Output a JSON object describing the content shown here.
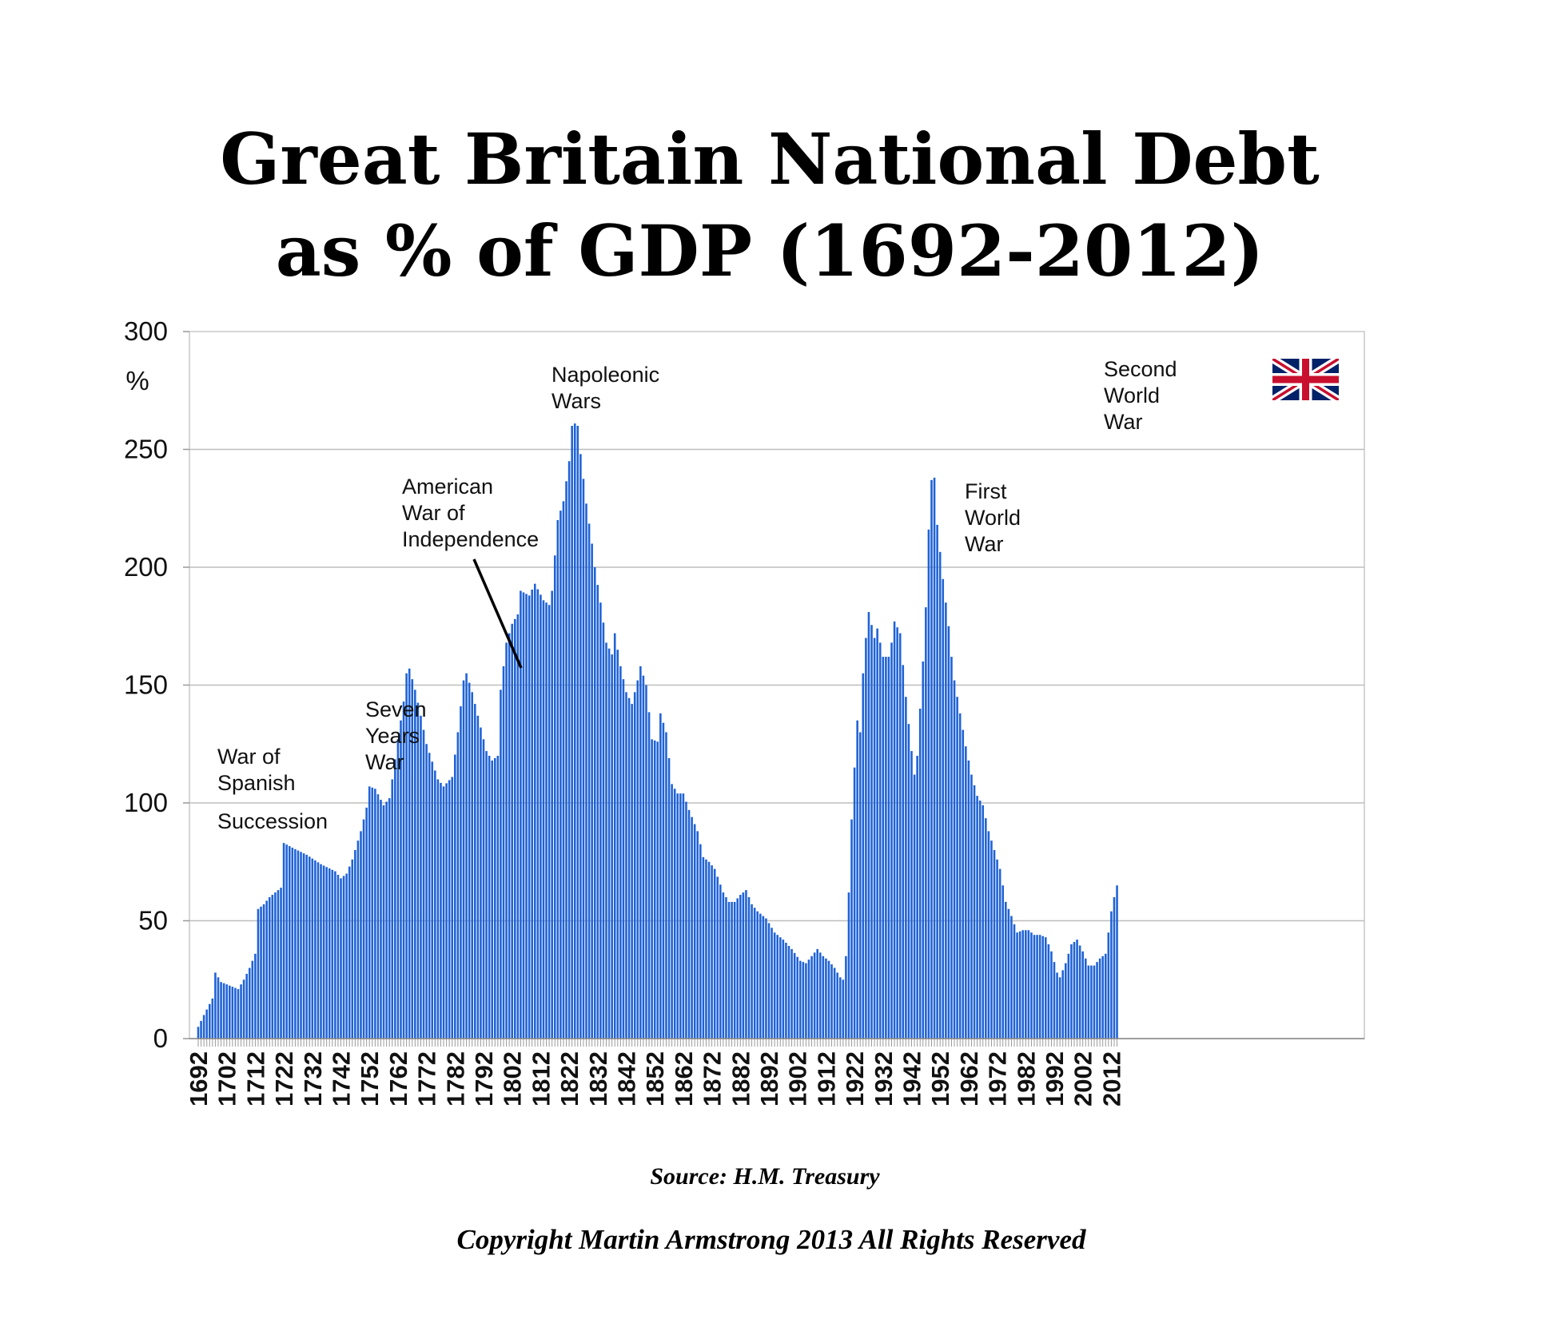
{
  "chart_data": {
    "type": "bar",
    "title": [
      "Great Britain National Debt",
      "as % of GDP (1692-2012)"
    ],
    "ylabel": "%",
    "xlabel": "",
    "ylim": [
      0,
      300
    ],
    "yticks": [
      0,
      50,
      100,
      150,
      200,
      250,
      300
    ],
    "xtick_labels": [
      "1692",
      "1702",
      "1712",
      "1722",
      "1732",
      "1742",
      "1752",
      "1762",
      "1772",
      "1782",
      "1792",
      "1802",
      "1812",
      "1822",
      "1832",
      "1842",
      "1852",
      "1862",
      "1872",
      "1882",
      "1892",
      "1902",
      "1912",
      "1922",
      "1932",
      "1942",
      "1952",
      "1962",
      "1972",
      "1982",
      "1992",
      "2002",
      "2012"
    ],
    "x_start": 1692,
    "x_end": 2012,
    "grid": true,
    "bar_color": "#1f62d6",
    "breakpoints": [
      [
        1692,
        5
      ],
      [
        1694,
        10
      ],
      [
        1697,
        17
      ],
      [
        1698,
        28
      ],
      [
        1700,
        24
      ],
      [
        1702,
        23
      ],
      [
        1704,
        22
      ],
      [
        1706,
        21
      ],
      [
        1708,
        25
      ],
      [
        1710,
        30
      ],
      [
        1712,
        36
      ],
      [
        1713,
        55
      ],
      [
        1715,
        57
      ],
      [
        1717,
        60
      ],
      [
        1719,
        62
      ],
      [
        1721,
        64
      ],
      [
        1722,
        83
      ],
      [
        1725,
        81
      ],
      [
        1730,
        78
      ],
      [
        1735,
        74
      ],
      [
        1740,
        71
      ],
      [
        1742,
        68
      ],
      [
        1744,
        70
      ],
      [
        1746,
        76
      ],
      [
        1749,
        88
      ],
      [
        1751,
        98
      ],
      [
        1752,
        107
      ],
      [
        1754,
        106
      ],
      [
        1757,
        99
      ],
      [
        1759,
        102
      ],
      [
        1760,
        110
      ],
      [
        1762,
        127
      ],
      [
        1764,
        143
      ],
      [
        1765,
        155
      ],
      [
        1766,
        157
      ],
      [
        1768,
        148
      ],
      [
        1770,
        137
      ],
      [
        1772,
        125
      ],
      [
        1776,
        110
      ],
      [
        1778,
        107
      ],
      [
        1781,
        111
      ],
      [
        1783,
        130
      ],
      [
        1785,
        152
      ],
      [
        1786,
        155
      ],
      [
        1788,
        147
      ],
      [
        1791,
        132
      ],
      [
        1793,
        122
      ],
      [
        1795,
        118
      ],
      [
        1797,
        120
      ],
      [
        1798,
        148
      ],
      [
        1800,
        168
      ],
      [
        1802,
        176
      ],
      [
        1804,
        180
      ],
      [
        1805,
        190
      ],
      [
        1808,
        188
      ],
      [
        1810,
        193
      ],
      [
        1813,
        186
      ],
      [
        1815,
        184
      ],
      [
        1816,
        190
      ],
      [
        1818,
        220
      ],
      [
        1820,
        228
      ],
      [
        1822,
        245
      ],
      [
        1823,
        260
      ],
      [
        1824,
        261
      ],
      [
        1825,
        260
      ],
      [
        1826,
        248
      ],
      [
        1828,
        227
      ],
      [
        1830,
        210
      ],
      [
        1831,
        200
      ],
      [
        1833,
        185
      ],
      [
        1835,
        168
      ],
      [
        1837,
        163
      ],
      [
        1838,
        172
      ],
      [
        1840,
        158
      ],
      [
        1842,
        147
      ],
      [
        1844,
        142
      ],
      [
        1846,
        152
      ],
      [
        1847,
        158
      ],
      [
        1849,
        150
      ],
      [
        1851,
        127
      ],
      [
        1853,
        126
      ],
      [
        1854,
        138
      ],
      [
        1856,
        130
      ],
      [
        1858,
        108
      ],
      [
        1860,
        104
      ],
      [
        1862,
        104
      ],
      [
        1864,
        97
      ],
      [
        1867,
        88
      ],
      [
        1869,
        77
      ],
      [
        1871,
        75
      ],
      [
        1873,
        72
      ],
      [
        1876,
        62
      ],
      [
        1878,
        58
      ],
      [
        1880,
        58
      ],
      [
        1882,
        61
      ],
      [
        1884,
        63
      ],
      [
        1886,
        57
      ],
      [
        1888,
        54
      ],
      [
        1891,
        51
      ],
      [
        1894,
        45
      ],
      [
        1897,
        42
      ],
      [
        1900,
        38
      ],
      [
        1903,
        33
      ],
      [
        1905,
        32
      ],
      [
        1907,
        35
      ],
      [
        1909,
        38
      ],
      [
        1911,
        35
      ],
      [
        1913,
        33
      ],
      [
        1915,
        30
      ],
      [
        1917,
        26
      ],
      [
        1918,
        25
      ],
      [
        1919,
        35
      ],
      [
        1920,
        62
      ],
      [
        1921,
        93
      ],
      [
        1922,
        115
      ],
      [
        1923,
        135
      ],
      [
        1924,
        130
      ],
      [
        1925,
        155
      ],
      [
        1926,
        170
      ],
      [
        1927,
        181
      ],
      [
        1929,
        170
      ],
      [
        1930,
        174
      ],
      [
        1932,
        162
      ],
      [
        1934,
        162
      ],
      [
        1935,
        168
      ],
      [
        1936,
        177
      ],
      [
        1938,
        172
      ],
      [
        1940,
        145
      ],
      [
        1942,
        122
      ],
      [
        1943,
        112
      ],
      [
        1944,
        120
      ],
      [
        1946,
        160
      ],
      [
        1947,
        183
      ],
      [
        1948,
        216
      ],
      [
        1949,
        237
      ],
      [
        1950,
        238
      ],
      [
        1951,
        218
      ],
      [
        1953,
        195
      ],
      [
        1955,
        175
      ],
      [
        1956,
        162
      ],
      [
        1957,
        152
      ],
      [
        1959,
        138
      ],
      [
        1961,
        124
      ],
      [
        1963,
        112
      ],
      [
        1965,
        103
      ],
      [
        1967,
        99
      ],
      [
        1969,
        88
      ],
      [
        1971,
        80
      ],
      [
        1973,
        72
      ],
      [
        1975,
        58
      ],
      [
        1977,
        52
      ],
      [
        1979,
        45
      ],
      [
        1981,
        46
      ],
      [
        1983,
        46
      ],
      [
        1985,
        44
      ],
      [
        1987,
        44
      ],
      [
        1989,
        43
      ],
      [
        1991,
        37
      ],
      [
        1993,
        28
      ],
      [
        1994,
        26
      ],
      [
        1996,
        32
      ],
      [
        1998,
        40
      ],
      [
        2000,
        42
      ],
      [
        2002,
        37
      ],
      [
        2004,
        31
      ],
      [
        2006,
        31
      ],
      [
        2008,
        34
      ],
      [
        2010,
        36
      ],
      [
        2011,
        45
      ],
      [
        2012,
        54
      ],
      [
        2013,
        60
      ],
      [
        2014,
        65
      ]
    ],
    "annotations": [
      {
        "lines": [
          "War of",
          "Spanish",
          "Succession"
        ]
      },
      {
        "lines": [
          "Seven",
          "Years",
          "War"
        ]
      },
      {
        "lines": [
          "American",
          "War of",
          "Independence"
        ]
      },
      {
        "lines": [
          "Napoleonic",
          "Wars"
        ]
      },
      {
        "lines": [
          "First",
          "World",
          "War"
        ]
      },
      {
        "lines": [
          "Second",
          "World",
          "War"
        ]
      }
    ]
  },
  "source_text": "Source: H.M. Treasury",
  "copyright_text": "Copyright Martin Armstrong 2013 All Rights Reserved",
  "flag_icon": "union-jack-flag-icon"
}
